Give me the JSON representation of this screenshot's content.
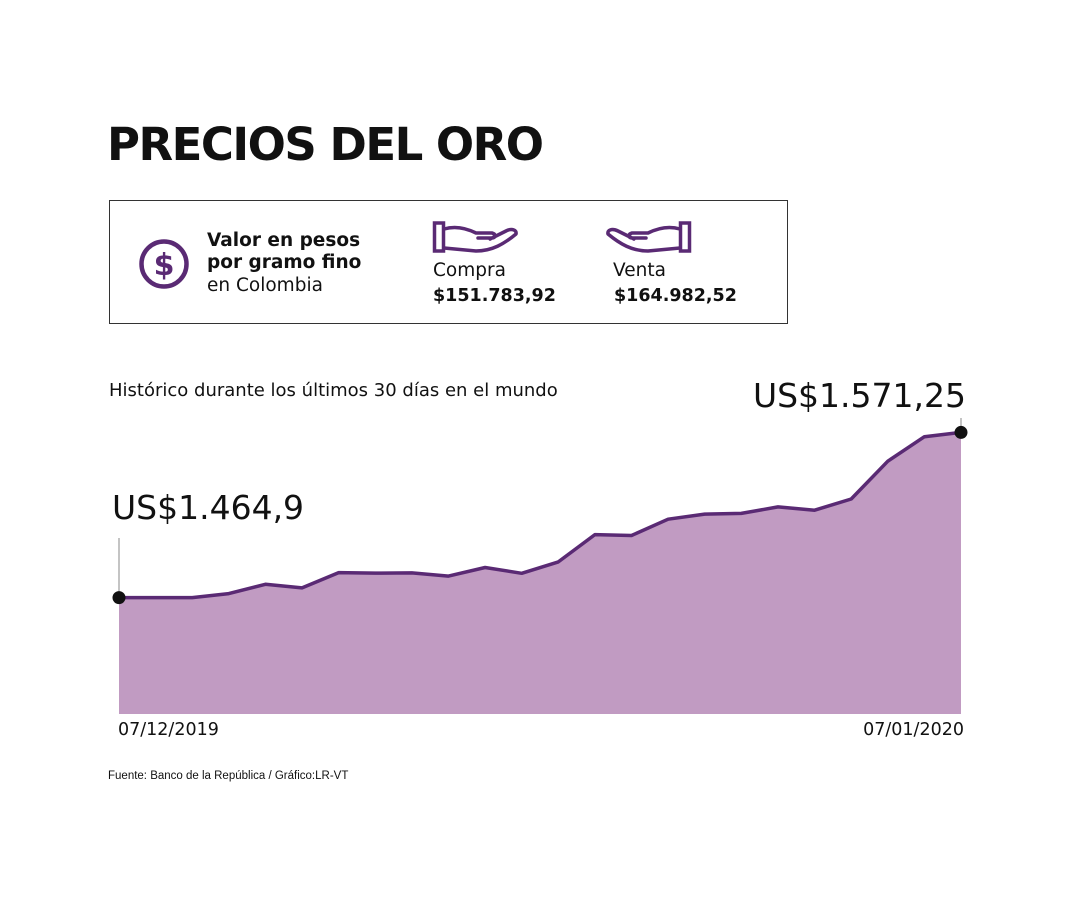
{
  "title": "PRECIOS DEL ORO",
  "info_box": {
    "label_line1": "Valor en pesos",
    "label_line2": "por gramo fino",
    "label_line3": "en Colombia",
    "compra_label": "Compra",
    "compra_value": "$151.783,92",
    "venta_label": "Venta",
    "venta_value": "$164.982,52",
    "icons": [
      "dollar-circle-icon",
      "hand-compra-icon",
      "hand-venta-icon"
    ],
    "accent_color": "#5a2a74"
  },
  "subtitle": "Histórico durante los últimos 30 días en el mundo",
  "source": "Fuente: Banco de la República / Gráfico:LR-VT",
  "chart_data": {
    "type": "area",
    "title": "",
    "xlabel": "",
    "ylabel": "",
    "x_start_label": "07/12/2019",
    "x_end_label": "07/01/2020",
    "start_value_label": "US$1.464,9",
    "end_value_label": "US$1.571,25",
    "ylim": [
      1390,
      1605
    ],
    "grid": false,
    "values": [
      1464.9,
      1464.9,
      1464.9,
      1467.5,
      1473.5,
      1471.2,
      1481.0,
      1480.7,
      1480.8,
      1478.8,
      1484.3,
      1480.6,
      1487.9,
      1505.5,
      1504.9,
      1515.4,
      1518.7,
      1519.1,
      1523.3,
      1521.2,
      1528.4,
      1552.7,
      1568.5,
      1571.25
    ],
    "fill_color": "#c19bc2",
    "line_color": "#5a2a74",
    "marker_color": "#111111"
  }
}
